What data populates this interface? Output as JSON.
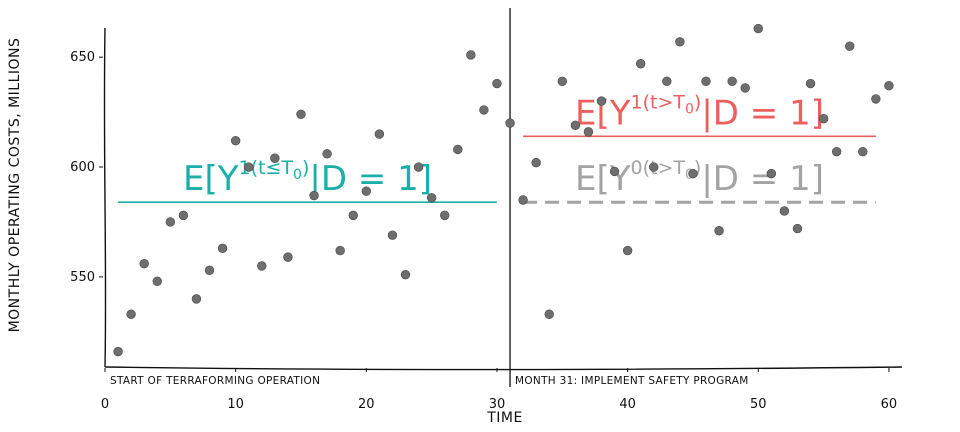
{
  "chart_data": {
    "type": "scatter",
    "title": "",
    "xlabel": "Time",
    "ylabel": "Monthly operating costs, millions",
    "xlim": [
      0,
      61
    ],
    "ylim": [
      509,
      666
    ],
    "x_ticks": [
      "0",
      "10",
      "20",
      "30",
      "40",
      "50",
      "60"
    ],
    "x_tick_values": [
      0,
      10,
      20,
      30,
      40,
      50,
      60
    ],
    "y_ticks": [
      "550",
      "600",
      "650"
    ],
    "y_tick_values": [
      550,
      600,
      650
    ],
    "grid": false,
    "intervention_x": 31,
    "annotations": {
      "start": "Start of terraforming operation",
      "intervention": "Month 31: implement safety program"
    },
    "expectations": [
      {
        "id": "pre",
        "x_start": 1,
        "x_end": 30,
        "y": 584,
        "color": "#1aafa8",
        "style": "solid",
        "label_main": "E[Y",
        "label_sup": "1(t≤T",
        "label_sub": "0",
        "label_close": ")",
        "label_tail": "|D = 1]"
      },
      {
        "id": "post-treated",
        "x_start": 32,
        "x_end": 59,
        "y": 614,
        "color": "#ec5f5f",
        "style": "solid",
        "label_main": "E[Y",
        "label_sup": "1(t>T",
        "label_sub": "0",
        "label_close": ")",
        "label_tail": "|D = 1]"
      },
      {
        "id": "post-counterfactual",
        "x_start": 32,
        "x_end": 59,
        "y": 584,
        "color": "#a3a3a3",
        "style": "dashed",
        "label_main": "E[Y",
        "label_sup": "0(t>T",
        "label_sub": "0",
        "label_close": ")",
        "label_tail": "|D = 1]"
      }
    ],
    "point_color": "#6e6e6e",
    "x": [
      1,
      2,
      3,
      4,
      5,
      6,
      7,
      8,
      9,
      10,
      11,
      12,
      13,
      14,
      15,
      16,
      17,
      18,
      19,
      20,
      21,
      22,
      23,
      24,
      25,
      26,
      27,
      28,
      29,
      30,
      31,
      32,
      33,
      34,
      35,
      36,
      37,
      38,
      39,
      40,
      41,
      42,
      43,
      44,
      45,
      46,
      47,
      48,
      49,
      50,
      51,
      52,
      53,
      54,
      55,
      56,
      57,
      58,
      59,
      60
    ],
    "y": [
      516,
      533,
      556,
      548,
      575,
      578,
      540,
      553,
      563,
      612,
      600,
      555,
      604,
      559,
      624,
      587,
      606,
      562,
      578,
      589,
      615,
      569,
      551,
      600,
      586,
      578,
      608,
      651,
      626,
      638,
      620,
      585,
      602,
      533,
      639,
      619,
      616,
      630,
      598,
      562,
      647,
      600,
      639,
      657,
      597,
      639,
      571,
      639,
      636,
      663,
      597,
      580,
      572,
      638,
      622,
      607,
      655,
      607,
      631,
      637
    ]
  }
}
